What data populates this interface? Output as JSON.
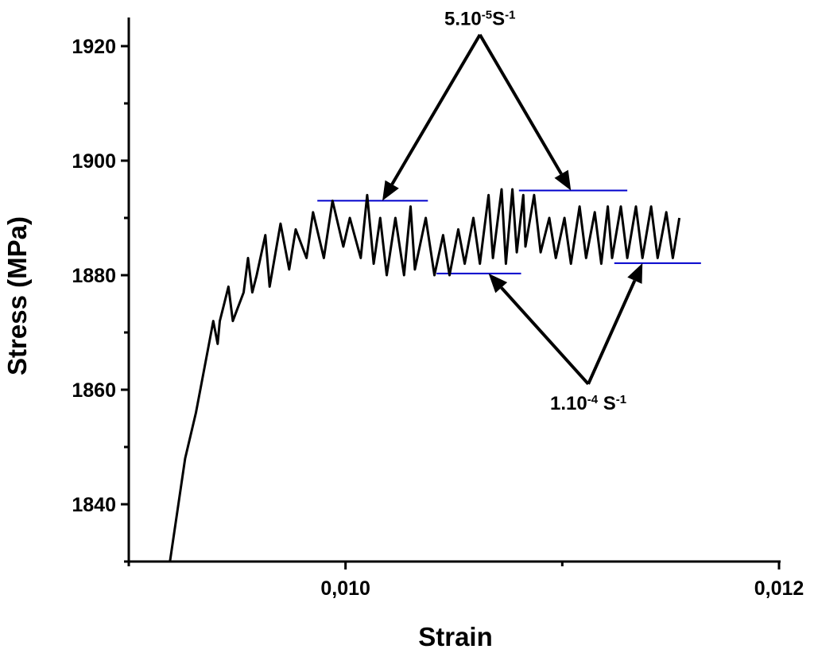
{
  "chart_data": {
    "type": "line",
    "title": "",
    "xlabel": "Strain",
    "ylabel": "Stress (MPa)",
    "xlim": [
      0.009,
      0.012
    ],
    "ylim": [
      1830,
      1925
    ],
    "grid": false,
    "legend": "none",
    "x_ticks": [
      {
        "value": 0.01,
        "label": "0,010"
      },
      {
        "value": 0.012,
        "label": "0,012"
      }
    ],
    "x_minor_ticks": [
      0.009,
      0.011
    ],
    "y_ticks": [
      {
        "value": 1840,
        "label": "1840"
      },
      {
        "value": 1860,
        "label": "1860"
      },
      {
        "value": 1880,
        "label": "1880"
      },
      {
        "value": 1900,
        "label": "1900"
      },
      {
        "value": 1920,
        "label": "1920"
      }
    ],
    "y_minor_ticks": [
      1830,
      1850,
      1870,
      1890,
      1910
    ],
    "series": [
      {
        "color": "#000000",
        "x": [
          0.00919,
          0.00926,
          0.00931,
          0.00934,
          0.00937,
          0.00939,
          0.00941,
          0.00942,
          0.00944,
          0.00946,
          0.00948,
          0.0095,
          0.00953,
          0.00955,
          0.00957,
          0.00959,
          0.00963,
          0.00965,
          0.0097,
          0.00974,
          0.00977,
          0.00982,
          0.00985,
          0.0099,
          0.00994,
          0.00999,
          0.01002,
          0.01007,
          0.0101,
          0.01013,
          0.01016,
          0.01019,
          0.01023,
          0.01027,
          0.0103,
          0.01032,
          0.01037,
          0.01041,
          0.01045,
          0.01048,
          0.01052,
          0.01055,
          0.01059,
          0.01062,
          0.01066,
          0.01068,
          0.01072,
          0.01074,
          0.01077,
          0.01079,
          0.01082,
          0.01083,
          0.01087,
          0.0109,
          0.01094,
          0.01097,
          0.01101,
          0.01104,
          0.01108,
          0.01111,
          0.01115,
          0.01118,
          0.01121,
          0.01123,
          0.01127,
          0.0113,
          0.01134,
          0.01137,
          0.01141,
          0.01144,
          0.01148,
          0.01151,
          0.01154
        ],
        "y": [
          1830,
          1848,
          1856,
          1862,
          1868,
          1872,
          1868,
          1872,
          1875,
          1878,
          1872,
          1874,
          1877,
          1883,
          1877,
          1880,
          1887,
          1878,
          1889,
          1881,
          1888,
          1883,
          1891,
          1883,
          1893,
          1885,
          1890,
          1883,
          1894,
          1882,
          1890,
          1880,
          1890,
          1880,
          1892,
          1881,
          1890,
          1880,
          1887,
          1880,
          1888,
          1882,
          1890,
          1882,
          1894,
          1883,
          1895,
          1882,
          1895,
          1884,
          1894,
          1885,
          1894,
          1884,
          1890,
          1883,
          1890,
          1882,
          1892,
          1883,
          1891,
          1882,
          1892,
          1883,
          1892,
          1883,
          1892,
          1883,
          1892,
          1883,
          1891,
          1883,
          1890
        ]
      }
    ],
    "reference_lines": [
      {
        "y": 1893,
        "x_start": 0.00987,
        "x_end": 0.01038
      },
      {
        "y": 1894.8,
        "x_start": 0.0108,
        "x_end": 0.0113
      },
      {
        "y": 1880.3,
        "x_start": 0.01042,
        "x_end": 0.01081
      },
      {
        "y": 1882.1,
        "x_start": 0.01124,
        "x_end": 0.01164
      }
    ],
    "annotations": [
      {
        "label_parts": [
          {
            "text": "5.10"
          },
          {
            "text": "-5",
            "sup": true
          },
          {
            "text": "S"
          },
          {
            "text": "-1",
            "sup": true
          }
        ],
        "anchor": {
          "x": 0.01062,
          "y": 1922
        },
        "targets": [
          {
            "x": 0.01017,
            "y": 1893
          },
          {
            "x": 0.01104,
            "y": 1894.8
          }
        ]
      },
      {
        "label_parts": [
          {
            "text": "1.10"
          },
          {
            "text": "-4",
            "sup": true
          },
          {
            "text": " S"
          },
          {
            "text": "-1",
            "sup": true
          }
        ],
        "anchor": {
          "x": 0.01112,
          "y": 1861
        },
        "targets": [
          {
            "x": 0.01066,
            "y": 1880.3
          },
          {
            "x": 0.01137,
            "y": 1882.1
          }
        ]
      }
    ]
  }
}
